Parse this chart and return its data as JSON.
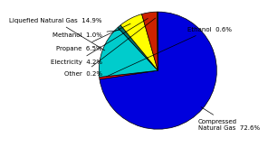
{
  "labels": [
    "Compressed\nNatural Gas",
    "Ethanol",
    "Liquefied Natural Gas",
    "Methanol",
    "Propane",
    "Electricity",
    "Other"
  ],
  "label_percents": [
    "72.6%",
    "0.6%",
    "14.9%",
    "1.0%",
    "6.5%",
    "4.2%",
    "0.2%"
  ],
  "values": [
    72.6,
    0.6,
    14.9,
    1.0,
    6.5,
    4.2,
    0.2
  ],
  "colors": [
    "#0000dd",
    "#ff0000",
    "#00cccc",
    "#007070",
    "#ffff00",
    "#cc2200",
    "#005555"
  ],
  "startangle": 90,
  "background_color": "#ffffff",
  "label_fontsize": 5.0
}
